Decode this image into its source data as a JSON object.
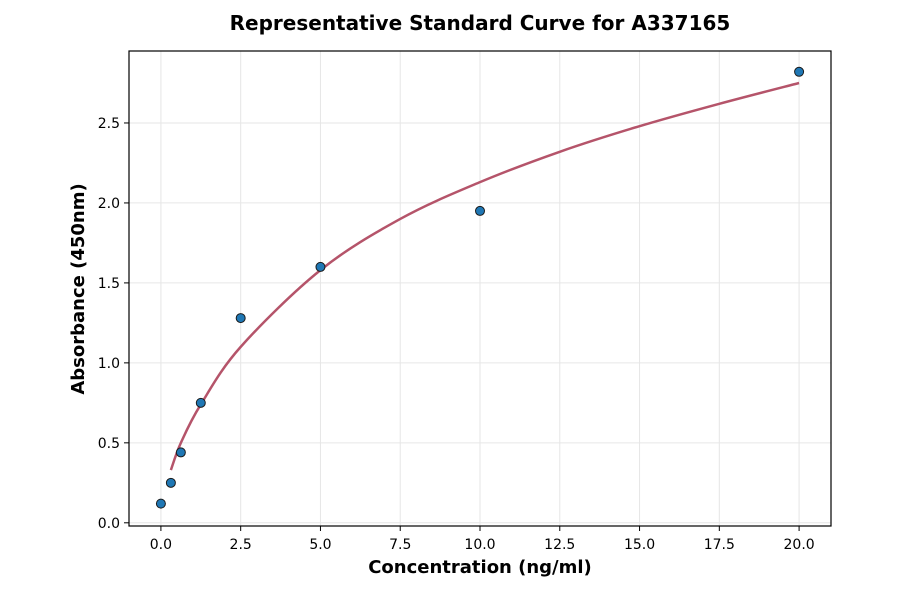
{
  "chart_data": {
    "type": "scatter",
    "title": "Representative Standard Curve for A337165",
    "xlabel": "Concentration (ng/ml)",
    "ylabel": "Absorbance (450nm)",
    "xlim": [
      -1,
      21
    ],
    "ylim": [
      -0.02,
      2.95
    ],
    "x_ticks": [
      0.0,
      2.5,
      5.0,
      7.5,
      10.0,
      12.5,
      15.0,
      17.5,
      20.0
    ],
    "x_tick_labels": [
      "0.0",
      "2.5",
      "5.0",
      "7.5",
      "10.0",
      "12.5",
      "15.0",
      "17.5",
      "20.0"
    ],
    "y_ticks": [
      0.0,
      0.5,
      1.0,
      1.5,
      2.0,
      2.5
    ],
    "y_tick_labels": [
      "0.0",
      "0.5",
      "1.0",
      "1.5",
      "2.0",
      "2.5"
    ],
    "grid": true,
    "series": [
      {
        "type": "scatter",
        "color": "#1f77b4",
        "x": [
          0,
          0.3125,
          0.625,
          1.25,
          2.5,
          5,
          10,
          20
        ],
        "y": [
          0.12,
          0.25,
          0.44,
          0.75,
          1.28,
          1.6,
          1.95,
          2.82
        ]
      },
      {
        "type": "line",
        "color": "#b5546a",
        "x": [
          0.3125,
          0.625,
          1.25,
          2.5,
          5,
          7.5,
          10,
          12.5,
          15,
          17.5,
          20
        ],
        "y": [
          0.33,
          0.5,
          0.74,
          1.1,
          1.58,
          1.9,
          2.13,
          2.32,
          2.48,
          2.62,
          2.75
        ]
      }
    ]
  }
}
